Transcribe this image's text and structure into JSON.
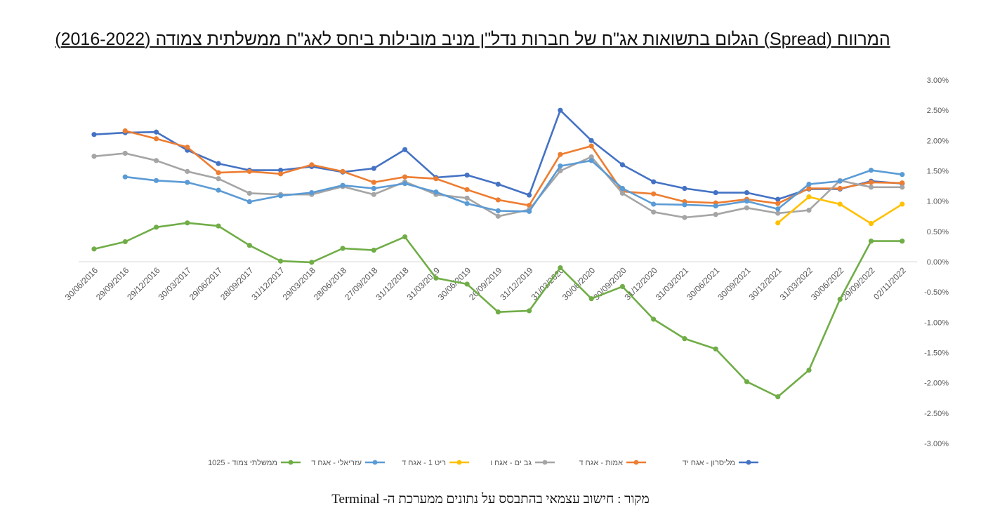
{
  "chart_data": {
    "type": "line",
    "title": "המרווח (Spread) הגלום בתשואות אג\"ח של חברות נדל\"ן מניב מובילות ביחס לאג\"ח ממשלתית צמודה (2016-2022)",
    "source": "מקור : חישוב עצמאי בהתבסס על נתונים ממערכת ה- Terminal",
    "ylim": [
      -0.03,
      0.03
    ],
    "ytick_step": 0.005,
    "y_axis_position": "right",
    "legend_position": "bottom",
    "grid": false,
    "categories": [
      "30/06/2016",
      "29/09/2016",
      "29/12/2016",
      "30/03/2017",
      "29/06/2017",
      "28/09/2017",
      "31/12/2017",
      "29/03/2018",
      "28/06/2018",
      "27/09/2018",
      "31/12/2018",
      "31/03/2019",
      "30/06/2019",
      "26/09/2019",
      "31/12/2019",
      "31/03/2020",
      "30/06/2020",
      "30/09/2020",
      "31/12/2020",
      "31/03/2021",
      "30/06/2021",
      "30/09/2021",
      "30/12/2021",
      "31/03/2022",
      "30/06/2022",
      "29/09/2022",
      "02/11/2022"
    ],
    "series": [
      {
        "name": "מליסרון - אגח יד",
        "color": "#4472C4",
        "values": [
          0.021,
          0.0213,
          0.0214,
          0.0184,
          0.0162,
          0.0151,
          0.0151,
          0.0157,
          0.0148,
          0.0154,
          0.0185,
          0.0139,
          0.0143,
          0.0128,
          0.011,
          0.025,
          0.02,
          0.016,
          0.0132,
          0.0121,
          0.0114,
          0.0114,
          0.0103,
          0.012,
          0.012,
          0.0133,
          0.0129
        ]
      },
      {
        "name": "אמות - אגח ד",
        "color": "#ED7D31",
        "values": [
          null,
          0.0216,
          0.0203,
          0.0189,
          0.0147,
          0.0149,
          0.0145,
          0.016,
          0.0149,
          0.0131,
          0.014,
          0.0137,
          0.0119,
          0.0102,
          0.0093,
          0.0177,
          0.0191,
          0.0116,
          0.0112,
          0.0099,
          0.0097,
          0.0103,
          0.0096,
          0.0121,
          0.0121,
          0.0131,
          0.013
        ]
      },
      {
        "name": "גב ים - אגח ו",
        "color": "#A5A5A5",
        "values": [
          0.0174,
          0.0179,
          0.0167,
          0.0149,
          0.0137,
          0.0113,
          0.0111,
          0.0111,
          0.0124,
          0.0111,
          0.0132,
          0.0111,
          0.0105,
          0.0075,
          0.0086,
          0.015,
          0.0173,
          0.0113,
          0.0082,
          0.0073,
          0.0078,
          0.0089,
          0.008,
          0.0085,
          0.0134,
          0.0123,
          0.0123
        ]
      },
      {
        "name": "ריט 1 - אגח ד",
        "color": "#FFC000",
        "values": [
          null,
          null,
          null,
          null,
          null,
          null,
          null,
          null,
          null,
          null,
          null,
          null,
          null,
          null,
          null,
          null,
          null,
          null,
          null,
          null,
          null,
          null,
          0.0064,
          0.0107,
          0.0095,
          0.0063,
          0.0095
        ]
      },
      {
        "name": "עזריאלי - אגח ד",
        "color": "#5B9BD5",
        "values": [
          null,
          0.014,
          0.0134,
          0.0131,
          0.0118,
          0.0099,
          0.0109,
          0.0114,
          0.0126,
          0.0121,
          0.0129,
          0.0115,
          0.0096,
          0.0084,
          0.0083,
          0.0158,
          0.0167,
          0.0121,
          0.0095,
          0.0094,
          0.0092,
          0.01,
          0.0087,
          0.0128,
          0.0133,
          0.0151,
          0.0144
        ]
      },
      {
        "name": "ממשלתי צמוד - 1025",
        "color": "#70AD47",
        "values": [
          0.0021,
          0.0033,
          0.0057,
          0.0064,
          0.0059,
          0.0027,
          0.0001,
          -0.0001,
          0.0022,
          0.0019,
          0.0041,
          -0.0027,
          -0.0037,
          -0.0083,
          -0.0081,
          -0.001,
          -0.0061,
          -0.0041,
          -0.0095,
          -0.0127,
          -0.0144,
          -0.0198,
          -0.0223,
          -0.0179,
          -0.0062,
          0.0034,
          0.0034
        ]
      }
    ]
  }
}
